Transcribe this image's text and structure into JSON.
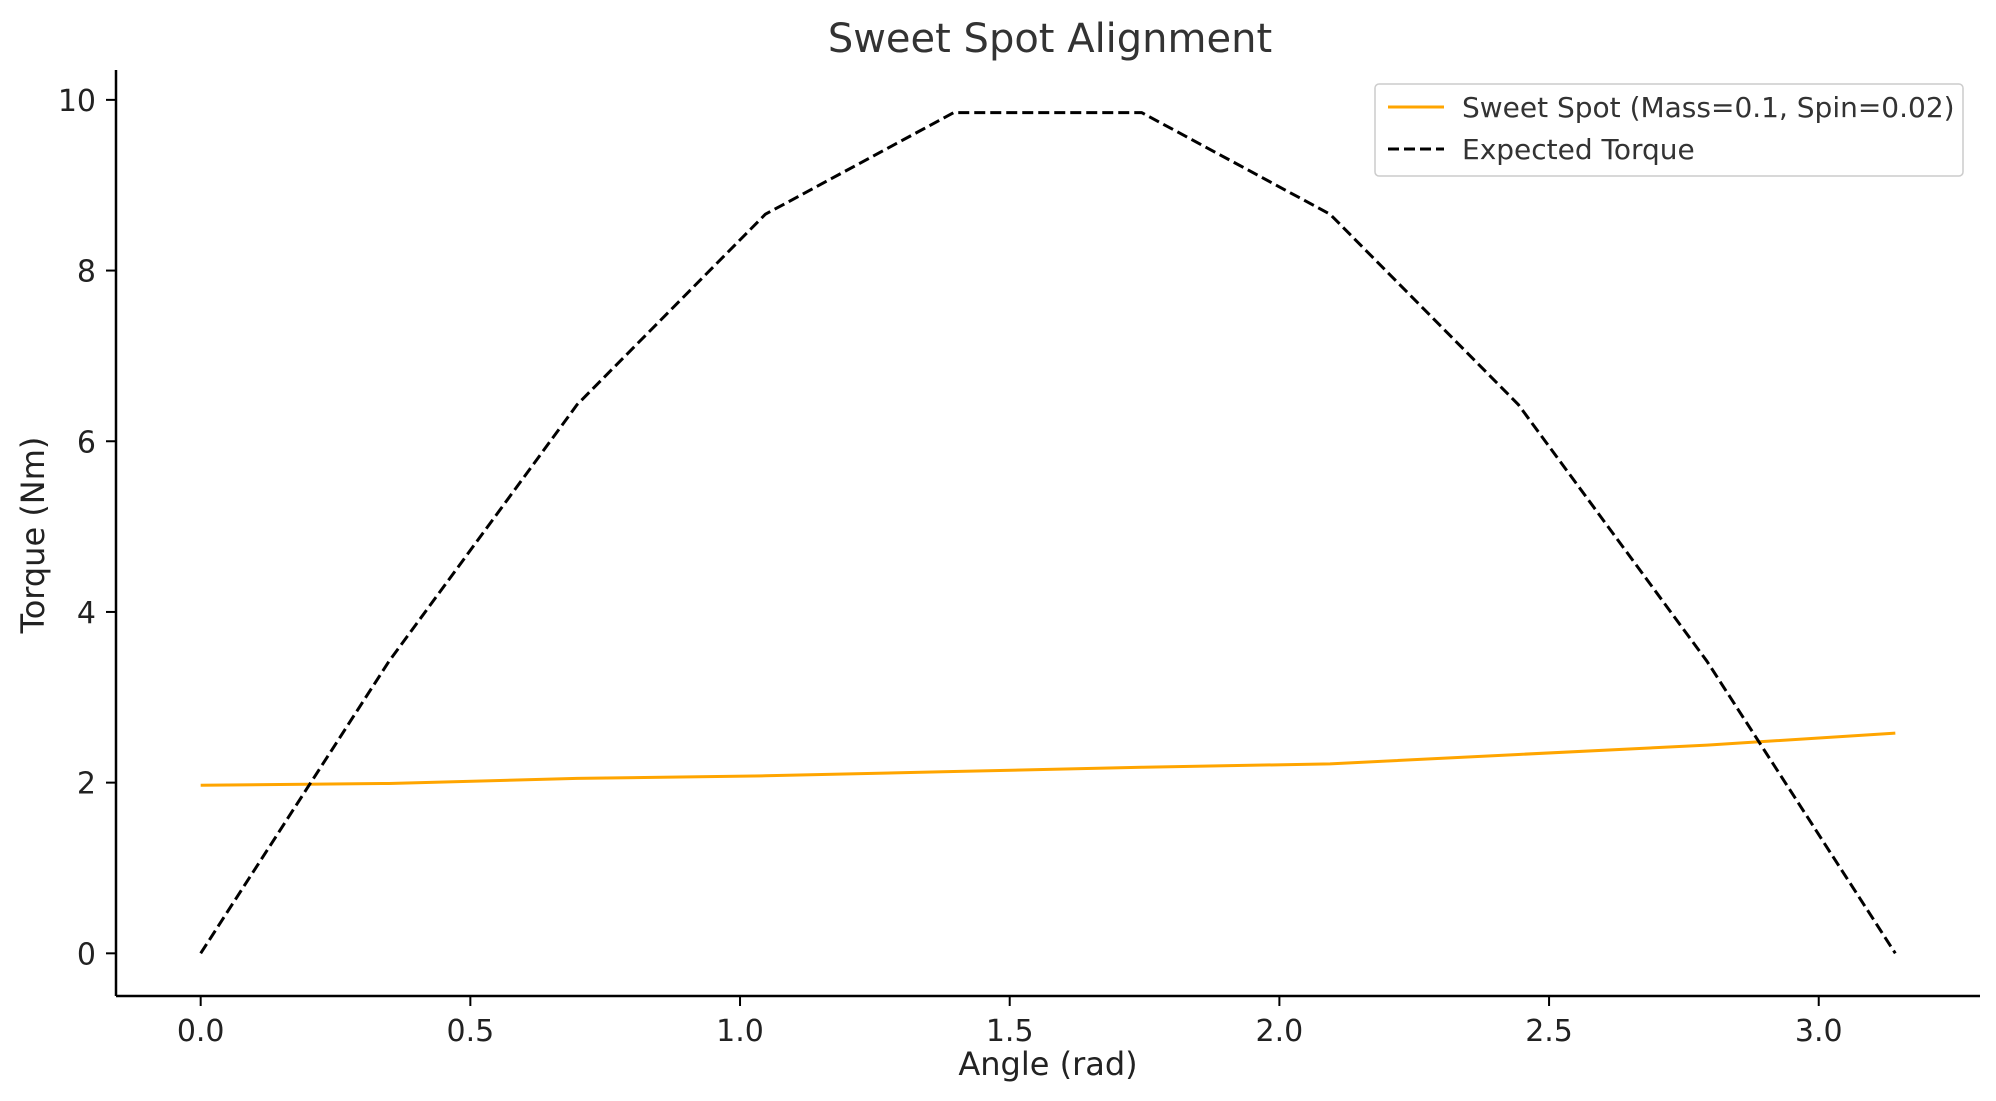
{
  "chart_data": {
    "type": "line",
    "title": "Sweet Spot Alignment",
    "xlabel": "Angle (rad)",
    "ylabel": "Torque (Nm)",
    "xlim": [
      -0.157,
      3.299
    ],
    "ylim": [
      -0.5,
      10.35
    ],
    "x_ticks": [
      {
        "value": 0.0,
        "label": "0.0"
      },
      {
        "value": 0.5,
        "label": "0.5"
      },
      {
        "value": 1.0,
        "label": "1.0"
      },
      {
        "value": 1.5,
        "label": "1.5"
      },
      {
        "value": 2.0,
        "label": "2.0"
      },
      {
        "value": 2.5,
        "label": "2.5"
      },
      {
        "value": 3.0,
        "label": "3.0"
      }
    ],
    "y_ticks": [
      {
        "value": 0,
        "label": "0"
      },
      {
        "value": 2,
        "label": "2"
      },
      {
        "value": 4,
        "label": "4"
      },
      {
        "value": 6,
        "label": "6"
      },
      {
        "value": 8,
        "label": "8"
      },
      {
        "value": 10,
        "label": "10"
      }
    ],
    "grid": false,
    "legend_position": "top-right",
    "series": [
      {
        "name": "Sweet Spot (Mass=0.1, Spin=0.02)",
        "color": "#FFA500",
        "style": "solid",
        "x": [
          0.0,
          0.349,
          0.698,
          1.047,
          1.396,
          1.745,
          2.094,
          2.443,
          2.793,
          3.142
        ],
        "y": [
          1.97,
          1.99,
          2.05,
          2.08,
          2.13,
          2.18,
          2.22,
          2.33,
          2.44,
          2.58
        ]
      },
      {
        "name": "Expected Torque",
        "color": "#000000",
        "style": "dashed",
        "x": [
          0.0,
          0.349,
          0.698,
          1.047,
          1.396,
          1.745,
          2.094,
          2.443,
          2.793,
          3.142
        ],
        "y": [
          0.0,
          3.42,
          6.43,
          8.66,
          9.85,
          9.85,
          8.66,
          6.43,
          3.42,
          0.0
        ]
      }
    ]
  }
}
